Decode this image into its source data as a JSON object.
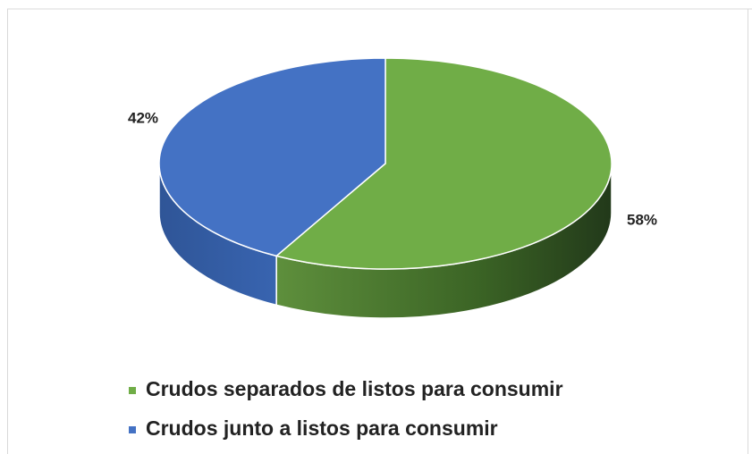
{
  "chart_data": {
    "type": "pie",
    "categories": [
      "Crudos separados de listos para consumir",
      "Crudos junto a listos para consumir"
    ],
    "values": [
      58,
      42
    ],
    "value_labels": [
      "58%",
      "42%"
    ],
    "colors": [
      "#70ad47",
      "#4472c4"
    ]
  }
}
